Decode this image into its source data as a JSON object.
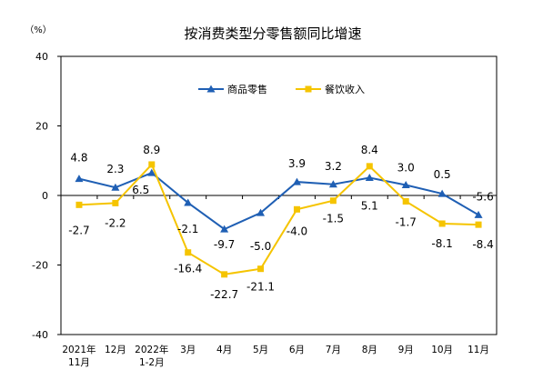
{
  "chart_data": {
    "type": "line",
    "title": "按消费类型分零售额同比增速",
    "y_unit_label": "（%）",
    "ylim": [
      -40,
      40
    ],
    "yticks": [
      -40,
      -20,
      0,
      20,
      40
    ],
    "grid": false,
    "legend_position": "top-center",
    "categories": [
      [
        "2021年",
        "11月"
      ],
      [
        "12月"
      ],
      [
        "2022年",
        "1-2月"
      ],
      [
        "3月"
      ],
      [
        "4月"
      ],
      [
        "5月"
      ],
      [
        "6月"
      ],
      [
        "7月"
      ],
      [
        "8月"
      ],
      [
        "9月"
      ],
      [
        "10月"
      ],
      [
        "11月"
      ]
    ],
    "series": [
      {
        "name": "商品零售",
        "color": "#1f5fb4",
        "marker": "triangle",
        "values": [
          4.8,
          2.3,
          6.5,
          -2.1,
          -9.7,
          -5.0,
          3.9,
          3.2,
          5.1,
          3.0,
          0.5,
          -5.6
        ],
        "labels": [
          "4.8",
          "2.3",
          "6.5",
          "-2.1",
          "-9.7",
          "-5.0",
          "3.9",
          "3.2",
          "5.1",
          "3.0",
          "0.5",
          "-5.6"
        ]
      },
      {
        "name": "餐饮收入",
        "color": "#f5c400",
        "marker": "square",
        "values": [
          -2.7,
          -2.2,
          8.9,
          -16.4,
          -22.7,
          -21.1,
          -4.0,
          -1.5,
          8.4,
          -1.7,
          -8.1,
          -8.4
        ],
        "labels": [
          "-2.7",
          "-2.2",
          "8.9",
          "-16.4",
          "-22.7",
          "-21.1",
          "-4.0",
          "-1.5",
          "8.4",
          "-1.7",
          "-8.1",
          "-8.4"
        ]
      }
    ]
  }
}
